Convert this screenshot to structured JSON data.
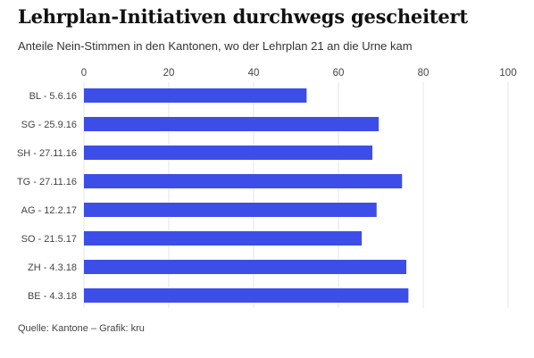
{
  "header": {
    "title": "Lehrplan-Initiativen durchwegs gescheitert",
    "subtitle": "Anteile Nein-Stimmen in den Kantonen, wo der Lehrplan 21 an die Urne kam"
  },
  "footer": {
    "source": "Quelle: Kantone – Grafik: kru"
  },
  "colors": {
    "bar": "#3d4ee8",
    "grid": "#e6e6e6"
  },
  "chart_data": {
    "type": "bar",
    "orientation": "horizontal",
    "categories": [
      "BL - 5.6.16",
      "SG - 25.9.16",
      "SH - 27.11.16",
      "TG - 27.11.16",
      "AG - 12.2.17",
      "SO - 21.5.17",
      "ZH - 4.3.18",
      "BE - 4.3.18"
    ],
    "values": [
      52.5,
      69.5,
      68,
      75,
      69,
      65.5,
      76,
      76.5
    ],
    "xlim": [
      0,
      100
    ],
    "xticks": [
      0,
      20,
      40,
      60,
      80,
      100
    ],
    "xaxis_position": "top",
    "grid": true
  }
}
